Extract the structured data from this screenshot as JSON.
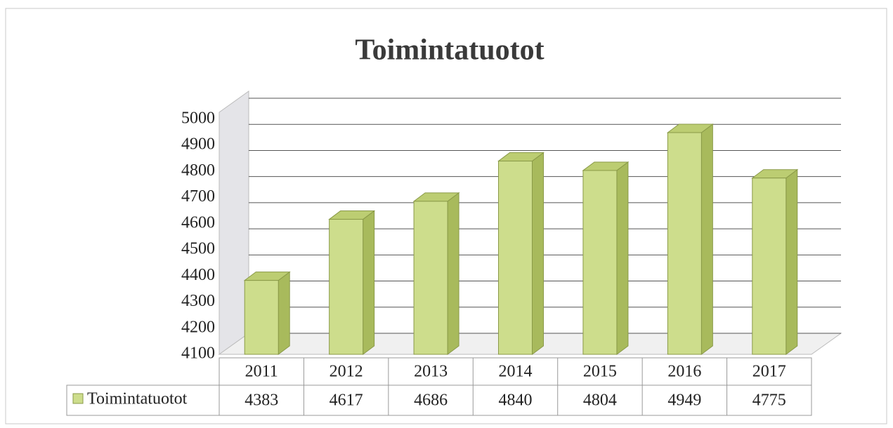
{
  "chart_data": {
    "type": "bar",
    "title": "Toimintatuotot",
    "categories": [
      "2011",
      "2012",
      "2013",
      "2014",
      "2015",
      "2016",
      "2017"
    ],
    "series": [
      {
        "name": "Toimintatuotot",
        "color": "#cddd8c",
        "values": [
          4383,
          4617,
          4686,
          4840,
          4804,
          4949,
          4775
        ]
      }
    ],
    "ylim": [
      4100,
      5000
    ],
    "yticks": [
      4100,
      4200,
      4300,
      4400,
      4500,
      4600,
      4700,
      4800,
      4900,
      5000
    ],
    "grid": true
  }
}
